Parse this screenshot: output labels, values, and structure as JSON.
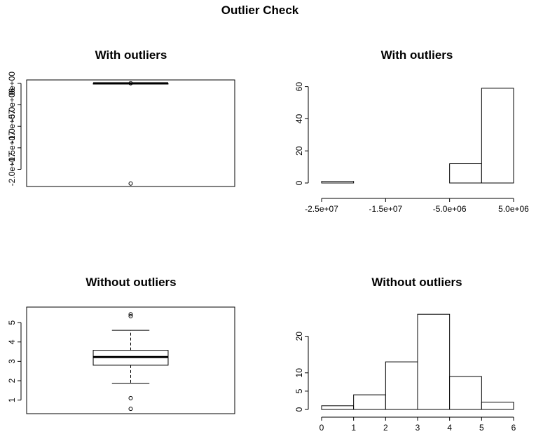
{
  "title": "Outlier Check",
  "chart_data": [
    {
      "id": "box_with",
      "type": "box",
      "title": "With outliers",
      "ylim": [
        -24000000,
        800000
      ],
      "yticks": [
        0,
        -5000000,
        -10000000,
        -15000000,
        -20000000
      ],
      "ytick_labels": [
        "0e+00",
        "-5.0e+06",
        "-1.0e+07",
        "-1.5e+07",
        "-2.0e+07"
      ],
      "stats": {
        "q1": 0,
        "median": 0,
        "q3": 0,
        "whisker_low": 0,
        "whisker_high": 0
      },
      "outliers": [
        -23300000,
        30000
      ]
    },
    {
      "id": "hist_with",
      "type": "bar",
      "title": "With outliers",
      "bins": [
        -25000000,
        -20000000,
        -15000000,
        -10000000,
        -5000000,
        0,
        5000000
      ],
      "counts": [
        1,
        0,
        0,
        0,
        12,
        59
      ],
      "xticks": [
        -25000000,
        -15000000,
        -5000000,
        5000000
      ],
      "xtick_labels": [
        "-2.5e+07",
        "-1.5e+07",
        "-5.0e+06",
        "5.0e+06"
      ],
      "yticks": [
        0,
        20,
        40,
        60
      ],
      "ytick_labels": [
        "0",
        "20",
        "40",
        "60"
      ],
      "ylim": [
        0,
        62
      ]
    },
    {
      "id": "box_without",
      "type": "box",
      "title": "Without outliers",
      "ylim": [
        0.3,
        5.8
      ],
      "yticks": [
        1,
        2,
        3,
        4,
        5
      ],
      "ytick_labels": [
        "1",
        "2",
        "3",
        "4",
        "5"
      ],
      "stats": {
        "q1": 2.8,
        "median": 3.22,
        "q3": 3.57,
        "whisker_low": 1.87,
        "whisker_high": 4.6
      },
      "outliers": [
        5.33,
        5.43,
        1.1,
        0.55
      ]
    },
    {
      "id": "hist_without",
      "type": "bar",
      "title": "Without outliers",
      "bins": [
        0,
        1,
        2,
        3,
        4,
        5,
        6
      ],
      "counts": [
        1,
        4,
        13,
        26,
        9,
        2
      ],
      "xticks": [
        0,
        1,
        2,
        3,
        4,
        5,
        6
      ],
      "xtick_labels": [
        "0",
        "1",
        "2",
        "3",
        "4",
        "5",
        "6"
      ],
      "yticks": [
        0,
        5,
        10,
        20
      ],
      "ytick_labels": [
        "0",
        "5",
        "10",
        "20"
      ],
      "ylim": [
        0,
        27
      ]
    }
  ]
}
